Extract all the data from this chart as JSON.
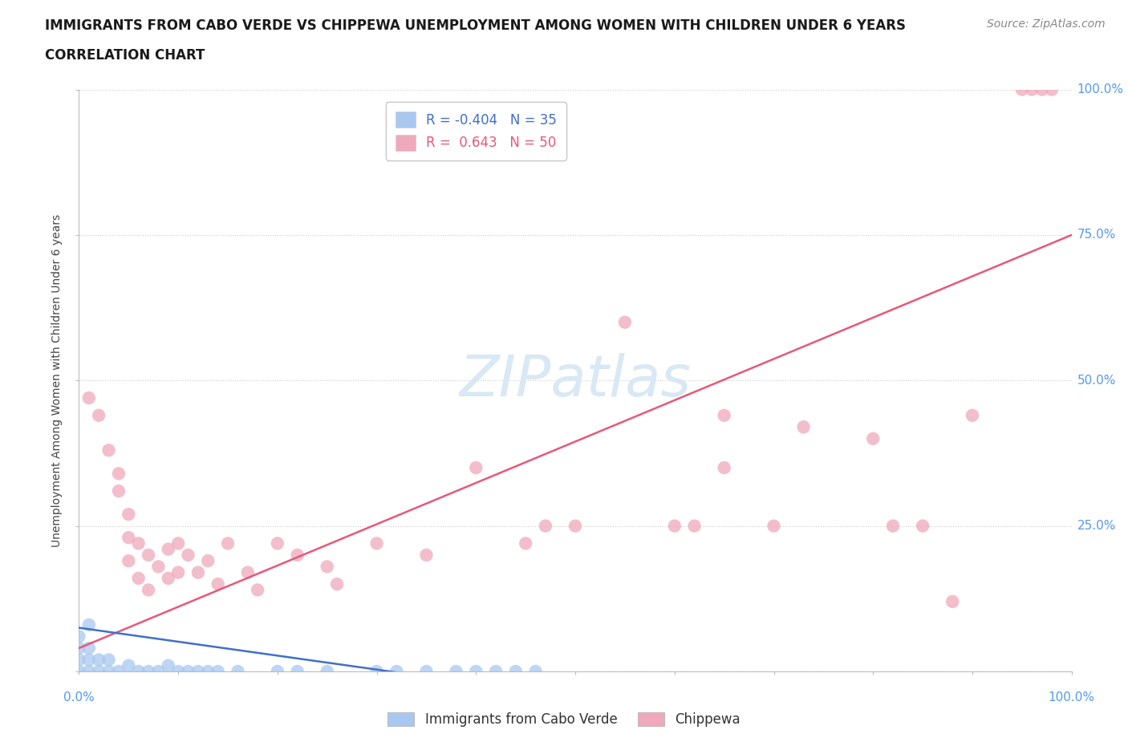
{
  "title": "IMMIGRANTS FROM CABO VERDE VS CHIPPEWA UNEMPLOYMENT AMONG WOMEN WITH CHILDREN UNDER 6 YEARS",
  "subtitle": "CORRELATION CHART",
  "source": "Source: ZipAtlas.com",
  "ylabel": "Unemployment Among Women with Children Under 6 years",
  "watermark": "ZIPatlas",
  "xmin": 0.0,
  "xmax": 1.0,
  "ymin": 0.0,
  "ymax": 1.0,
  "y_ticks": [
    0.0,
    0.25,
    0.5,
    0.75,
    1.0
  ],
  "y_tick_labels": [
    "",
    "25.0%",
    "50.0%",
    "75.0%",
    "100.0%"
  ],
  "x_ticks": [
    0.0,
    0.1,
    0.2,
    0.3,
    0.4,
    0.5,
    0.6,
    0.7,
    0.8,
    0.9,
    1.0
  ],
  "cabo_verde_color": "#a8c8f0",
  "chippewa_color": "#f0a8bc",
  "cabo_verde_line_color": "#4070c8",
  "chippewa_line_color": "#e85878",
  "R_cabo_verde": -0.404,
  "N_cabo_verde": 35,
  "R_chippewa": 0.643,
  "N_chippewa": 50,
  "cabo_verde_points": [
    [
      0.0,
      0.0
    ],
    [
      0.0,
      0.02
    ],
    [
      0.0,
      0.04
    ],
    [
      0.0,
      0.06
    ],
    [
      0.01,
      0.0
    ],
    [
      0.01,
      0.02
    ],
    [
      0.01,
      0.04
    ],
    [
      0.01,
      0.08
    ],
    [
      0.02,
      0.0
    ],
    [
      0.02,
      0.02
    ],
    [
      0.03,
      0.0
    ],
    [
      0.03,
      0.02
    ],
    [
      0.04,
      0.0
    ],
    [
      0.05,
      0.01
    ],
    [
      0.06,
      0.0
    ],
    [
      0.07,
      0.0
    ],
    [
      0.08,
      0.0
    ],
    [
      0.09,
      0.01
    ],
    [
      0.1,
      0.0
    ],
    [
      0.11,
      0.0
    ],
    [
      0.12,
      0.0
    ],
    [
      0.13,
      0.0
    ],
    [
      0.14,
      0.0
    ],
    [
      0.16,
      0.0
    ],
    [
      0.2,
      0.0
    ],
    [
      0.22,
      0.0
    ],
    [
      0.25,
      0.0
    ],
    [
      0.3,
      0.0
    ],
    [
      0.32,
      0.0
    ],
    [
      0.35,
      0.0
    ],
    [
      0.38,
      0.0
    ],
    [
      0.4,
      0.0
    ],
    [
      0.42,
      0.0
    ],
    [
      0.44,
      0.0
    ],
    [
      0.46,
      0.0
    ]
  ],
  "chippewa_points": [
    [
      0.01,
      0.47
    ],
    [
      0.02,
      0.44
    ],
    [
      0.03,
      0.38
    ],
    [
      0.04,
      0.34
    ],
    [
      0.04,
      0.31
    ],
    [
      0.05,
      0.27
    ],
    [
      0.05,
      0.23
    ],
    [
      0.05,
      0.19
    ],
    [
      0.06,
      0.22
    ],
    [
      0.06,
      0.16
    ],
    [
      0.07,
      0.2
    ],
    [
      0.07,
      0.14
    ],
    [
      0.08,
      0.18
    ],
    [
      0.09,
      0.21
    ],
    [
      0.09,
      0.16
    ],
    [
      0.1,
      0.22
    ],
    [
      0.1,
      0.17
    ],
    [
      0.11,
      0.2
    ],
    [
      0.12,
      0.17
    ],
    [
      0.13,
      0.19
    ],
    [
      0.14,
      0.15
    ],
    [
      0.15,
      0.22
    ],
    [
      0.17,
      0.17
    ],
    [
      0.18,
      0.14
    ],
    [
      0.2,
      0.22
    ],
    [
      0.22,
      0.2
    ],
    [
      0.25,
      0.18
    ],
    [
      0.26,
      0.15
    ],
    [
      0.3,
      0.22
    ],
    [
      0.35,
      0.2
    ],
    [
      0.4,
      0.35
    ],
    [
      0.45,
      0.22
    ],
    [
      0.47,
      0.25
    ],
    [
      0.5,
      0.25
    ],
    [
      0.55,
      0.6
    ],
    [
      0.6,
      0.25
    ],
    [
      0.62,
      0.25
    ],
    [
      0.65,
      0.44
    ],
    [
      0.65,
      0.35
    ],
    [
      0.7,
      0.25
    ],
    [
      0.73,
      0.42
    ],
    [
      0.8,
      0.4
    ],
    [
      0.82,
      0.25
    ],
    [
      0.85,
      0.25
    ],
    [
      0.88,
      0.12
    ],
    [
      0.9,
      0.44
    ],
    [
      0.95,
      1.0
    ],
    [
      0.96,
      1.0
    ],
    [
      0.97,
      1.0
    ],
    [
      0.98,
      1.0
    ]
  ],
  "bg_color": "#ffffff",
  "grid_color": "#cccccc",
  "tick_color": "#5599ee",
  "title_fontsize": 12,
  "subtitle_fontsize": 12,
  "axis_label_fontsize": 10,
  "tick_fontsize": 11,
  "legend_fontsize": 12,
  "source_fontsize": 10
}
